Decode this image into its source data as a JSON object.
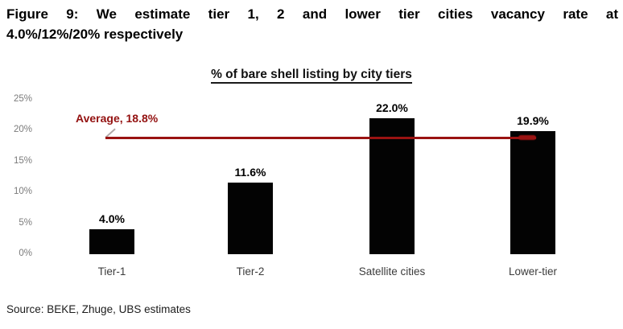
{
  "figure": {
    "title_line1": "Figure 9: We estimate tier 1, 2 and lower tier cities vacancy rate at",
    "title_line2": "4.0%/12%/20% respectively"
  },
  "chart_data": {
    "type": "bar",
    "title": "% of bare shell listing by city tiers",
    "categories": [
      "Tier-1",
      "Tier-2",
      "Satellite cities",
      "Lower-tier"
    ],
    "values": [
      4.0,
      11.6,
      22.0,
      19.9
    ],
    "value_labels": [
      "4.0%",
      "11.6%",
      "22.0%",
      "19.9%"
    ],
    "xlabel": "",
    "ylabel": "",
    "ylim": [
      0,
      25
    ],
    "y_tick_labels": [
      "0%",
      "5%",
      "10%",
      "15%",
      "20%",
      "25%"
    ],
    "grid": false,
    "legend": "none",
    "bar_color": "#030303",
    "average_annotation": {
      "label": "Average, 18.8%",
      "value": 18.8,
      "line_color": "#9a1312",
      "label_color": "#931110"
    }
  },
  "source": {
    "text": "Source: BEKE, Zhuge, UBS estimates"
  }
}
